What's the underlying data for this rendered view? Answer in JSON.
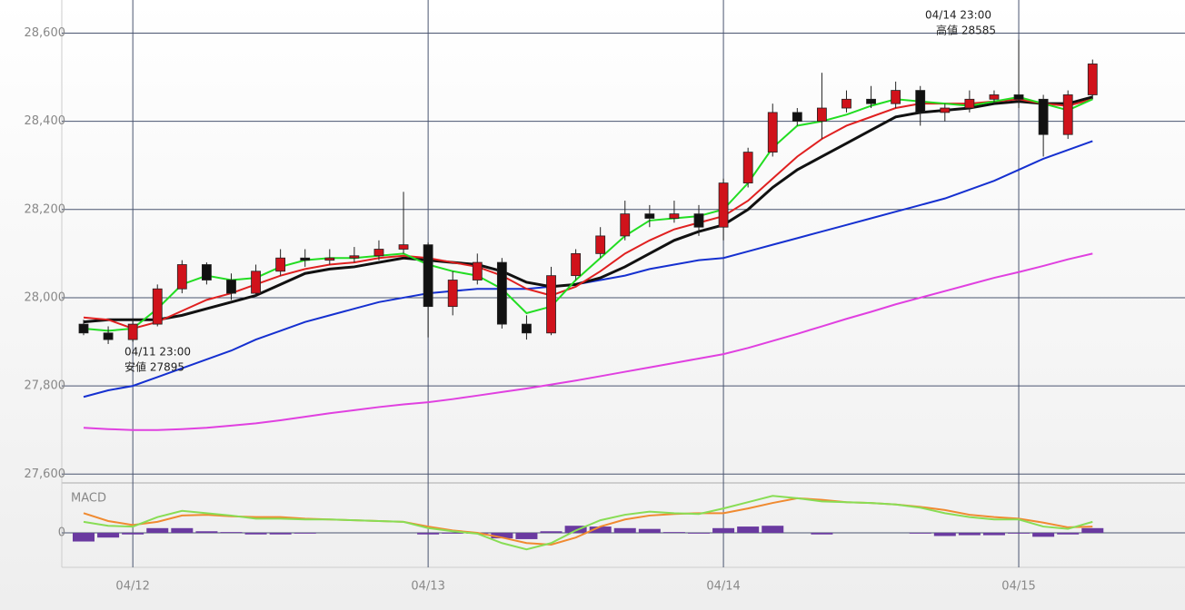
{
  "chart_data": [
    {
      "type": "candlestick",
      "categories": [
        null,
        null,
        "04/12",
        null,
        null,
        null,
        null,
        null,
        null,
        null,
        null,
        null,
        null,
        null,
        "04/13",
        null,
        null,
        null,
        null,
        null,
        null,
        null,
        null,
        null,
        null,
        null,
        "04/14",
        null,
        null,
        null,
        null,
        null,
        null,
        null,
        null,
        null,
        null,
        null,
        "04/15",
        null,
        null,
        null
      ],
      "open": [
        27940,
        27920,
        27905,
        27940,
        28020,
        28075,
        28040,
        28010,
        28060,
        28090,
        28085,
        28090,
        28095,
        28110,
        28120,
        27980,
        28040,
        28080,
        27940,
        27920,
        28050,
        28100,
        28140,
        28190,
        28180,
        28190,
        28160,
        28260,
        28330,
        28420,
        28400,
        28430,
        28450,
        28440,
        28470,
        28420,
        28430,
        28450,
        28460,
        28450,
        28370,
        28460
      ],
      "high": [
        27950,
        27935,
        27950,
        28030,
        28085,
        28080,
        28055,
        28075,
        28110,
        28110,
        28110,
        28115,
        28130,
        28240,
        28125,
        28060,
        28100,
        28090,
        27960,
        28070,
        28110,
        28160,
        28220,
        28210,
        28220,
        28210,
        28270,
        28340,
        28440,
        28430,
        28510,
        28470,
        28480,
        28490,
        28480,
        28440,
        28470,
        28470,
        28585,
        28460,
        28470,
        28540
      ],
      "low": [
        27915,
        27895,
        27900,
        27935,
        28010,
        28030,
        27995,
        28005,
        28050,
        28070,
        28075,
        28080,
        28085,
        28100,
        27910,
        27960,
        28030,
        27930,
        27905,
        27915,
        28040,
        28090,
        28130,
        28160,
        28170,
        28140,
        28130,
        28250,
        28320,
        28390,
        28360,
        28420,
        28430,
        28430,
        28390,
        28400,
        28420,
        28440,
        28430,
        28320,
        28360,
        28450
      ],
      "close": [
        27920,
        27905,
        27940,
        28020,
        28075,
        28040,
        28010,
        28060,
        28090,
        28085,
        28090,
        28095,
        28110,
        28120,
        27980,
        28040,
        28080,
        27940,
        27920,
        28050,
        28100,
        28140,
        28190,
        28180,
        28190,
        28160,
        28260,
        28330,
        28420,
        28400,
        28430,
        28450,
        28440,
        28470,
        28420,
        28430,
        28450,
        28460,
        28450,
        28370,
        28460,
        28530
      ],
      "up_color": "#d0121b",
      "down_color": "#111111",
      "series": [
        {
          "color": "#e040e0",
          "values": [
            27705,
            27702,
            27700,
            27700,
            27702,
            27705,
            27710,
            27715,
            27722,
            27730,
            27738,
            27745,
            27752,
            27758,
            27763,
            27770,
            27778,
            27786,
            27794,
            27803,
            27812,
            27822,
            27832,
            27842,
            27852,
            27862,
            27872,
            27886,
            27902,
            27918,
            27935,
            27952,
            27968,
            27985,
            28000,
            28015,
            28030,
            28045,
            28058,
            28072,
            28087,
            28100
          ]
        },
        {
          "color": "#1530d0",
          "values": [
            27775,
            27790,
            27800,
            27820,
            27840,
            27860,
            27880,
            27905,
            27925,
            27945,
            27960,
            27975,
            27990,
            28000,
            28010,
            28015,
            28020,
            28020,
            28020,
            28025,
            28030,
            28040,
            28050,
            28065,
            28075,
            28085,
            28090,
            28105,
            28120,
            28135,
            28150,
            28165,
            28180,
            28195,
            28210,
            28225,
            28245,
            28265,
            28290,
            28315,
            28335,
            28355
          ]
        },
        {
          "color": "#111111",
          "values": [
            27945,
            27950,
            27950,
            27950,
            27960,
            27975,
            27990,
            28005,
            28030,
            28055,
            28065,
            28070,
            28080,
            28090,
            28085,
            28080,
            28075,
            28060,
            28035,
            28025,
            28030,
            28045,
            28070,
            28100,
            28130,
            28150,
            28165,
            28200,
            28250,
            28290,
            28320,
            28350,
            28380,
            28410,
            28420,
            28425,
            28430,
            28440,
            28445,
            28440,
            28440,
            28455
          ]
        },
        {
          "color": "#e02020",
          "values": [
            27955,
            27950,
            27930,
            27945,
            27970,
            27995,
            28010,
            28030,
            28050,
            28065,
            28075,
            28080,
            28090,
            28095,
            28090,
            28080,
            28070,
            28050,
            28020,
            28005,
            28025,
            28060,
            28100,
            28130,
            28155,
            28170,
            28185,
            28220,
            28270,
            28320,
            28360,
            28390,
            28410,
            28430,
            28440,
            28440,
            28440,
            28445,
            28450,
            28440,
            28435,
            28450
          ]
        },
        {
          "color": "#22dd22",
          "values": [
            27930,
            27925,
            27930,
            27975,
            28030,
            28050,
            28040,
            28045,
            28070,
            28085,
            28090,
            28090,
            28095,
            28100,
            28075,
            28060,
            28050,
            28020,
            27965,
            27980,
            28040,
            28090,
            28140,
            28175,
            28180,
            28185,
            28200,
            28260,
            28340,
            28390,
            28400,
            28415,
            28435,
            28450,
            28445,
            28440,
            28435,
            28445,
            28455,
            28440,
            28425,
            28450
          ]
        }
      ],
      "ylim": [
        27580,
        28675
      ],
      "yticks": [
        {
          "value": 27600,
          "label": "27,600"
        },
        {
          "value": 27800,
          "label": "27,800"
        },
        {
          "value": 28000,
          "label": "28,000"
        },
        {
          "value": 28200,
          "label": "28,200"
        },
        {
          "value": 28400,
          "label": "28,400"
        },
        {
          "value": 28600,
          "label": "28,600"
        }
      ],
      "annotations": [
        {
          "time": "04/11 23:00",
          "text": "安値 27895"
        },
        {
          "time": "04/14 23:00",
          "text": "高値 28585"
        }
      ]
    },
    {
      "type": "macd",
      "title": "MACD",
      "histogram": [
        -11,
        -6,
        -2,
        6,
        6,
        2,
        1,
        -2,
        -2,
        -1,
        0,
        0,
        0,
        0,
        -2,
        -1,
        -1,
        -7,
        -8,
        2,
        9,
        8,
        6,
        5,
        1,
        -1,
        6,
        8,
        9,
        0,
        -2,
        0,
        0,
        0,
        -1,
        -4,
        -3,
        -3,
        -1,
        -5,
        -2,
        6
      ],
      "histogram_color": "#6a3aa0",
      "series": [
        {
          "color": "#f08a30",
          "values": [
            25,
            15,
            10,
            14,
            22,
            23,
            21,
            20,
            20,
            18,
            17,
            16,
            15,
            14,
            8,
            3,
            0,
            -6,
            -13,
            -15,
            -6,
            8,
            17,
            22,
            24,
            25,
            25,
            31,
            38,
            44,
            42,
            39,
            38,
            36,
            33,
            29,
            23,
            20,
            18,
            13,
            7,
            8
          ]
        },
        {
          "color": "#88dd55",
          "values": [
            14,
            9,
            8,
            20,
            28,
            25,
            22,
            18,
            18,
            17,
            17,
            16,
            15,
            14,
            6,
            2,
            -1,
            -13,
            -21,
            -13,
            3,
            16,
            23,
            27,
            25,
            24,
            31,
            39,
            47,
            44,
            40,
            39,
            38,
            36,
            32,
            25,
            20,
            17,
            17,
            8,
            5,
            14
          ]
        }
      ],
      "ylim": [
        -60,
        60
      ],
      "yticks": [
        0
      ]
    }
  ]
}
